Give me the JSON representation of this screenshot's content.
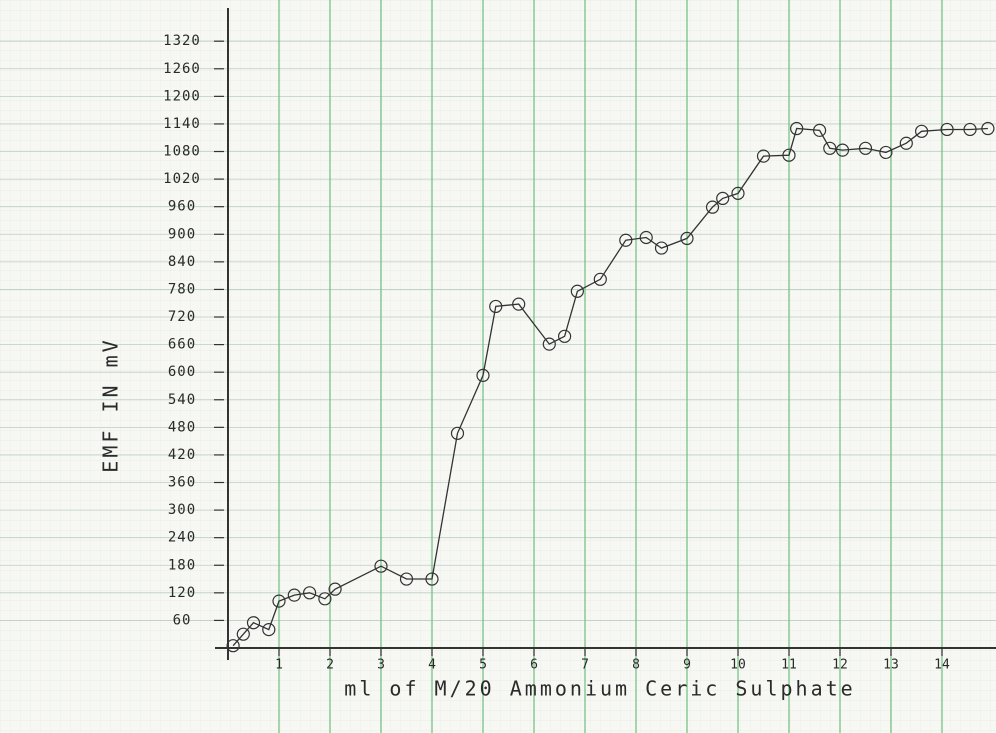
{
  "chart_data": {
    "type": "line",
    "y_label": "EMF IN mV",
    "x_label": "ml of M/20 Ammonium Ceric Sulphate",
    "x": [
      0.1,
      0.3,
      0.5,
      0.8,
      1.0,
      1.3,
      1.6,
      1.9,
      2.1,
      3.0,
      3.5,
      4.0,
      4.5,
      5.0,
      5.25,
      5.7,
      6.3,
      6.6,
      6.85,
      7.3,
      7.8,
      8.2,
      8.5,
      9.0,
      9.5,
      9.7,
      10.0,
      10.5,
      11.0,
      11.15,
      11.6,
      11.8,
      12.05,
      12.5,
      12.9,
      13.3,
      13.6,
      14.1,
      14.55,
      14.9
    ],
    "values": [
      5,
      30,
      55,
      40,
      102,
      115,
      120,
      107,
      128,
      178,
      150,
      150,
      467,
      593,
      743,
      748,
      661,
      678,
      776,
      802,
      887,
      893,
      870,
      891,
      959,
      978,
      989,
      1070,
      1072,
      1130,
      1126,
      1087,
      1083,
      1087,
      1078,
      1098,
      1124,
      1128,
      1128,
      1130
    ],
    "color": "#333333",
    "marker": "open-circle",
    "xlim": [
      0,
      15
    ],
    "ylim": [
      0,
      1340
    ],
    "xticks": [
      1,
      2,
      3,
      4,
      5,
      6,
      7,
      8,
      9,
      10,
      11,
      12,
      13,
      14
    ],
    "yticks": [
      60,
      120,
      180,
      240,
      300,
      360,
      420,
      480,
      540,
      600,
      660,
      720,
      780,
      840,
      900,
      960,
      1020,
      1080,
      1140,
      1200,
      1260,
      1320
    ],
    "grid": true
  }
}
